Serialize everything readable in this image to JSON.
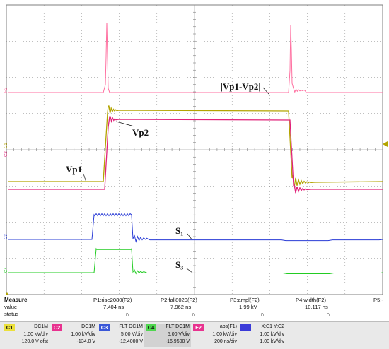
{
  "scope": {
    "trace_labels": {
      "diff": "|Vp1-Vp2|",
      "vp2": "Vp2",
      "vp1": "Vp1",
      "s1": "S₁",
      "s3": "S₃"
    },
    "marker_labels": {
      "f2": "F2",
      "c1": "C1",
      "c2": "C2",
      "c3": "C3",
      "c4": "C4"
    },
    "colors": {
      "c1": "#b3a400",
      "c2": "#e0237a",
      "c3": "#2a3cd6",
      "c4": "#22cc22",
      "f2": "#ff6fa0",
      "grid": "#7f7f7f"
    }
  },
  "measure": {
    "headers": [
      "Measure",
      "P1:rise2080(F2)",
      "P2:fall8020(F2)",
      "P3:ampl(F2)",
      "P4:width(F2)",
      "P5:-"
    ],
    "value_label": "value",
    "values": [
      "7.404 ns",
      "7.962 ns",
      "1.99 kV",
      "10.117 ns"
    ],
    "status_label": "status",
    "status_icon": "∩"
  },
  "channels": [
    {
      "id": "C1",
      "coupling": "DC1M",
      "line2": "1.00 kV/div",
      "line3": "120.0 V ofst",
      "color": "#ebe03b",
      "text": "#111"
    },
    {
      "id": "C2",
      "coupling": "DC1M",
      "line2": "1.00 kV/div",
      "line3": "-134.0 V",
      "color": "#e8328f",
      "text": "#fff"
    },
    {
      "id": "C3",
      "coupling": "FLT DC1M",
      "line2": "5.00 V/div",
      "line3": "-12.4000 V",
      "color": "#3a57d8",
      "text": "#fff"
    },
    {
      "id": "C4",
      "coupling": "FLT DC1M",
      "line2": "5.00 V/div",
      "line3": "-16.9500 V",
      "color": "#4fd64f",
      "text": "#111"
    },
    {
      "id": "F2",
      "coupling": "abs(F1)",
      "line2": "1.00 kV/div",
      "line3": "200 ns/div",
      "color": "#e8328f",
      "text": "#fff"
    },
    {
      "id": "",
      "coupling": "X:C1  Y:C2",
      "line2": "1.00 kV/div",
      "line3": "1.00 kV/div",
      "color": "#3a3ad8",
      "text": "#fff"
    }
  ]
}
